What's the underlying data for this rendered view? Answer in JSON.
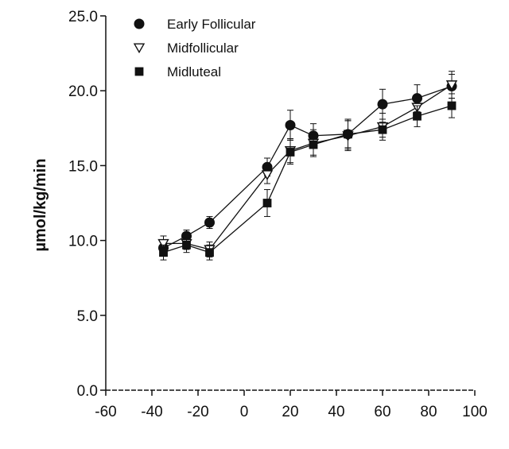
{
  "chart_data": {
    "type": "line",
    "title": "",
    "xlabel": "",
    "ylabel": "µmol/kg/min",
    "xlim": [
      -60,
      100
    ],
    "ylim": [
      0,
      25
    ],
    "xticks": [
      -60,
      -40,
      -20,
      0,
      20,
      40,
      60,
      80,
      100
    ],
    "xtick_labels": [
      "-60",
      "-40",
      "-20",
      "0",
      "20",
      "40",
      "60",
      "80",
      "100"
    ],
    "yticks": [
      0,
      5,
      10,
      15,
      20,
      25
    ],
    "ytick_labels": [
      "0.0",
      "5.0",
      "10.0",
      "15.0",
      "20.0",
      "25.0"
    ],
    "grid": false,
    "legend_position": "top-left",
    "series": [
      {
        "name": "Early Follicular",
        "marker": "filled-circle",
        "x": [
          -35,
          -25,
          -15,
          10,
          20,
          30,
          45,
          60,
          75,
          90
        ],
        "y": [
          9.5,
          10.3,
          11.2,
          14.9,
          17.7,
          17.0,
          17.1,
          19.1,
          19.5,
          20.3
        ],
        "err": [
          0.5,
          0.4,
          0.4,
          0.6,
          1.0,
          0.8,
          1.0,
          1.0,
          0.9,
          0.8
        ]
      },
      {
        "name": "Midfollicular",
        "marker": "open-triangle-down",
        "x": [
          -35,
          -25,
          -15,
          10,
          20,
          30,
          45,
          60,
          75,
          90
        ],
        "y": [
          9.8,
          9.8,
          9.4,
          14.4,
          16.0,
          16.5,
          17.0,
          17.6,
          18.9,
          20.4
        ],
        "err": [
          0.5,
          0.4,
          0.5,
          0.6,
          0.8,
          0.9,
          1.0,
          0.9,
          0.8,
          0.9
        ]
      },
      {
        "name": "Midluteal",
        "marker": "filled-square",
        "x": [
          -35,
          -25,
          -15,
          10,
          20,
          30,
          45,
          60,
          75,
          90
        ],
        "y": [
          9.2,
          9.7,
          9.2,
          12.5,
          15.9,
          16.4,
          17.1,
          17.4,
          18.3,
          19.0
        ],
        "err": [
          0.5,
          0.5,
          0.5,
          0.9,
          0.8,
          0.7,
          0.9,
          0.5,
          0.7,
          0.8
        ]
      }
    ]
  }
}
